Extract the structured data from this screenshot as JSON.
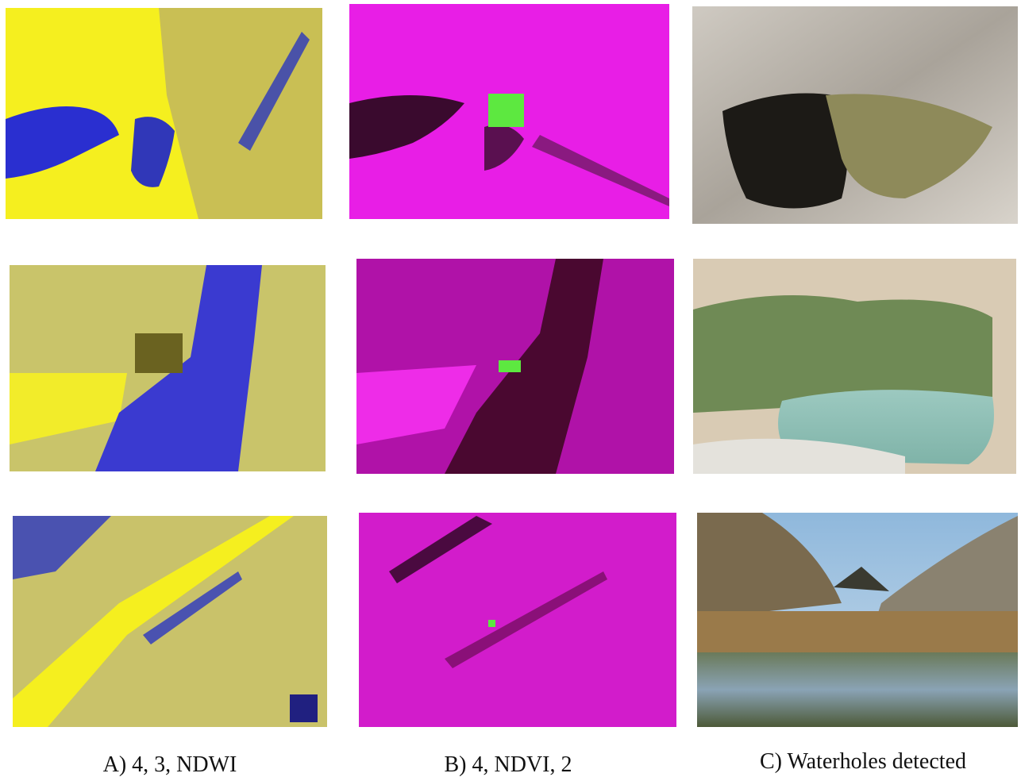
{
  "captions": [
    "A) 4, 3, NDWI",
    "B) 4, NDVI, 2",
    "C) Waterholes detected"
  ]
}
